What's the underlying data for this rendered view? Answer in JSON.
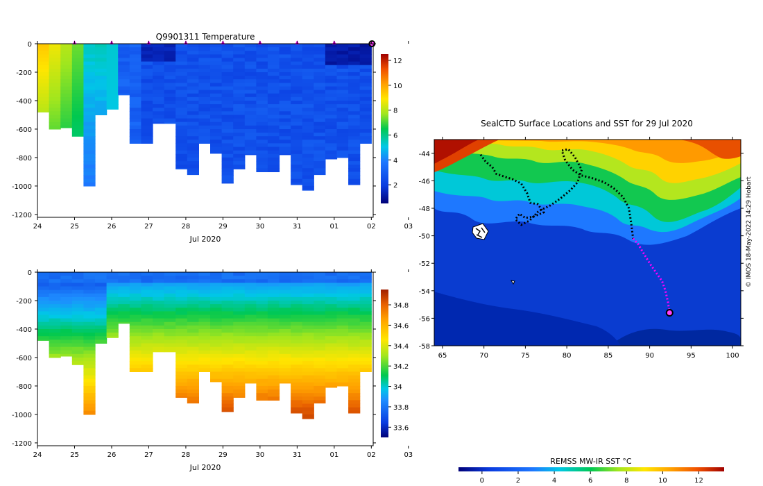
{
  "chart_data": [
    {
      "type": "heatmap",
      "title": "Q9901311  Temperature",
      "xlabel": "Jul 2020",
      "x_ticks": [
        "24",
        "25",
        "26",
        "27",
        "28",
        "29",
        "30",
        "31",
        "01",
        "02",
        "03"
      ],
      "xlim": [
        24,
        33.05
      ],
      "ylim": [
        -1220,
        0
      ],
      "y_ticks": [
        0,
        -200,
        -400,
        -600,
        -800,
        -1000,
        -1200
      ],
      "profile_times": [
        25,
        26,
        27,
        28,
        29,
        30,
        31,
        32,
        33
      ],
      "profile_max_depths": [
        -480,
        -600,
        -590,
        -650,
        -1000,
        -500,
        -460,
        -360,
        -700,
        -700,
        -560,
        -560,
        -880,
        -920,
        -700,
        -770,
        -980,
        -880,
        -780,
        -900,
        -900,
        -780,
        -990,
        -1030,
        -920,
        -810,
        -800,
        -990,
        -700
      ],
      "colorbar": {
        "ticks": [
          2,
          4,
          6,
          8,
          10,
          12
        ],
        "range": [
          0.5,
          12.5
        ],
        "labels": [
          "2",
          "4",
          "6",
          "8",
          "10",
          "12"
        ]
      }
    },
    {
      "type": "heatmap",
      "title": "",
      "xlabel": "Jul 2020",
      "x_ticks": [
        "24",
        "25",
        "26",
        "27",
        "28",
        "29",
        "30",
        "31",
        "01",
        "02",
        "03"
      ],
      "xlim": [
        24,
        33.05
      ],
      "ylim": [
        -1220,
        0
      ],
      "y_ticks": [
        0,
        -200,
        -400,
        -600,
        -800,
        -1000,
        -1200
      ],
      "colorbar": {
        "ticks": [
          33.6,
          33.8,
          34,
          34.2,
          34.4,
          34.6,
          34.8
        ],
        "range": [
          33.5,
          34.95
        ],
        "labels": [
          "33.6",
          "33.8",
          "34",
          "34.2",
          "34.4",
          "34.6",
          "34.8"
        ]
      }
    },
    {
      "type": "heatmap",
      "title": "SealCTD Surface Locations and SST for 29 Jul 2020",
      "xlim": [
        64,
        101
      ],
      "ylim": [
        -58,
        -43
      ],
      "x_ticks": [
        65,
        70,
        75,
        80,
        85,
        90,
        95,
        100
      ],
      "y_ticks": [
        -44,
        -46,
        -48,
        -50,
        -52,
        -54,
        -56,
        -58
      ],
      "colorbar": {
        "title": "REMSS MW-IR SST °C",
        "ticks": [
          0,
          2,
          4,
          6,
          8,
          10,
          12
        ],
        "range": [
          -1.3,
          13.4
        ],
        "labels": [
          "0",
          "2",
          "4",
          "6",
          "8",
          "10",
          "12"
        ]
      },
      "track_end": {
        "lon": 92.4,
        "lat": -55.6
      },
      "credit": "© IMOS 18-May-2022 14:29 Hobart"
    }
  ],
  "y_tick_labels": [
    "0",
    "-200",
    "-400",
    "-600",
    "-800",
    "-1000",
    "-1200"
  ],
  "map_x_labels": [
    "65",
    "70",
    "75",
    "80",
    "85",
    "90",
    "95",
    "100"
  ],
  "map_y_labels": [
    "-44",
    "-46",
    "-48",
    "-50",
    "-52",
    "-54",
    "-56",
    "-58"
  ]
}
